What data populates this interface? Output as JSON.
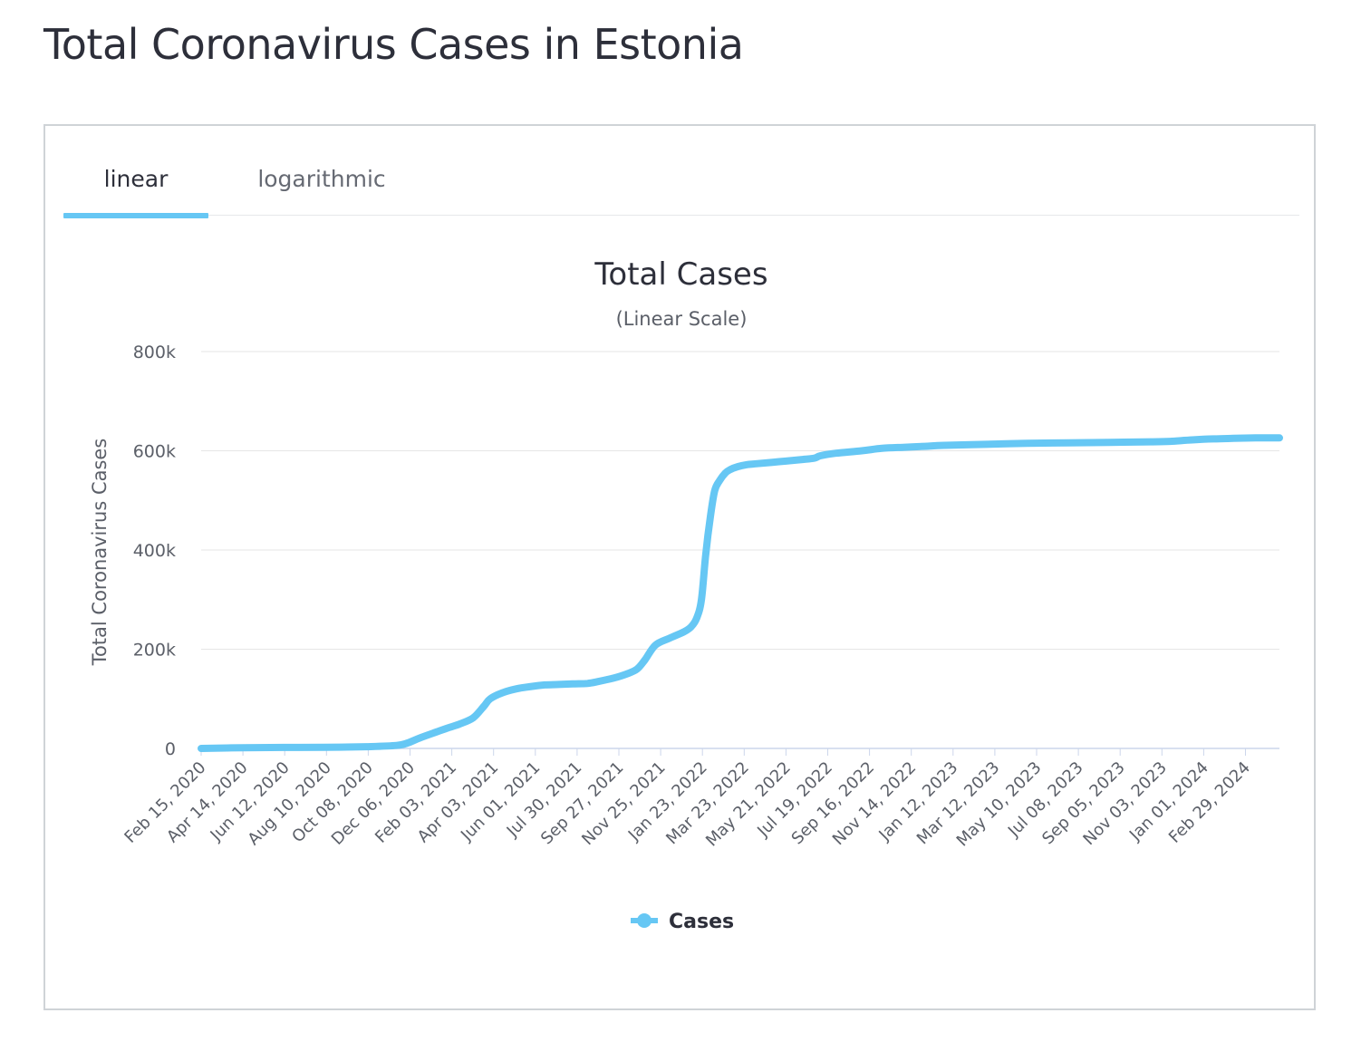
{
  "page": {
    "title": "Total Coronavirus Cases in Estonia"
  },
  "tabs": [
    {
      "label": "linear",
      "active": true
    },
    {
      "label": "logarithmic",
      "active": false
    }
  ],
  "colors": {
    "series": "#66c7f4",
    "grid": "#e6e6e6",
    "text": "#2d2f3a"
  },
  "chart_data": {
    "type": "line",
    "title": "Total Cases",
    "subtitle": "(Linear Scale)",
    "xlabel": "",
    "ylabel": "Total Coronavirus Cases",
    "ylim": [
      0,
      800000
    ],
    "yticks": [
      0,
      200000,
      400000,
      600000,
      800000
    ],
    "ytick_labels": [
      "0",
      "200k",
      "400k",
      "600k",
      "800k"
    ],
    "xlim": [
      "2020-02-15",
      "2024-05-05"
    ],
    "xtick_labels": [
      "Feb 15, 2020",
      "Apr 14, 2020",
      "Jun 12, 2020",
      "Aug 10, 2020",
      "Oct 08, 2020",
      "Dec 06, 2020",
      "Feb 03, 2021",
      "Apr 03, 2021",
      "Jun 01, 2021",
      "Jul 30, 2021",
      "Sep 27, 2021",
      "Nov 25, 2021",
      "Jan 23, 2022",
      "Mar 23, 2022",
      "May 21, 2022",
      "Jul 19, 2022",
      "Sep 16, 2022",
      "Nov 14, 2022",
      "Jan 12, 2023",
      "Mar 12, 2023",
      "May 10, 2023",
      "Jul 08, 2023",
      "Sep 05, 2023",
      "Nov 03, 2023",
      "Jan 01, 2024",
      "Feb 29, 2024"
    ],
    "grid": true,
    "legend": "bottom-center",
    "series": [
      {
        "name": "Cases",
        "x": [
          "2020-02-15",
          "2020-04-14",
          "2020-06-12",
          "2020-08-10",
          "2020-10-08",
          "2020-11-20",
          "2020-12-06",
          "2020-12-25",
          "2021-01-20",
          "2021-02-03",
          "2021-02-20",
          "2021-03-10",
          "2021-03-25",
          "2021-04-03",
          "2021-04-20",
          "2021-05-10",
          "2021-06-01",
          "2021-06-20",
          "2021-07-10",
          "2021-07-30",
          "2021-08-20",
          "2021-09-05",
          "2021-09-27",
          "2021-10-15",
          "2021-10-30",
          "2021-11-10",
          "2021-11-25",
          "2021-12-15",
          "2022-01-05",
          "2022-01-15",
          "2022-01-23",
          "2022-01-30",
          "2022-02-05",
          "2022-02-12",
          "2022-02-18",
          "2022-02-25",
          "2022-03-05",
          "2022-03-12",
          "2022-03-23",
          "2022-04-05",
          "2022-04-20",
          "2022-05-21",
          "2022-06-20",
          "2022-07-10",
          "2022-07-19",
          "2022-08-10",
          "2022-09-16",
          "2022-10-15",
          "2022-11-14",
          "2022-12-15",
          "2023-01-12",
          "2023-03-12",
          "2023-05-10",
          "2023-07-08",
          "2023-09-05",
          "2023-11-03",
          "2023-12-01",
          "2024-01-01",
          "2024-02-01",
          "2024-02-29",
          "2024-04-01",
          "2024-05-05"
        ],
        "y": [
          0,
          1500,
          2000,
          2200,
          3500,
          6000,
          11000,
          22000,
          35000,
          42000,
          50000,
          62000,
          85000,
          100000,
          112000,
          120000,
          125000,
          128000,
          129000,
          130000,
          131000,
          135000,
          142000,
          150000,
          160000,
          178000,
          208000,
          222000,
          235000,
          245000,
          262000,
          300000,
          390000,
          470000,
          520000,
          540000,
          555000,
          562000,
          568000,
          572000,
          574000,
          578000,
          582000,
          585000,
          590000,
          595000,
          600000,
          605000,
          607000,
          609000,
          611000,
          613000,
          615000,
          616000,
          617000,
          618000,
          619000,
          622000,
          624000,
          625000,
          626000,
          626000
        ]
      }
    ]
  }
}
